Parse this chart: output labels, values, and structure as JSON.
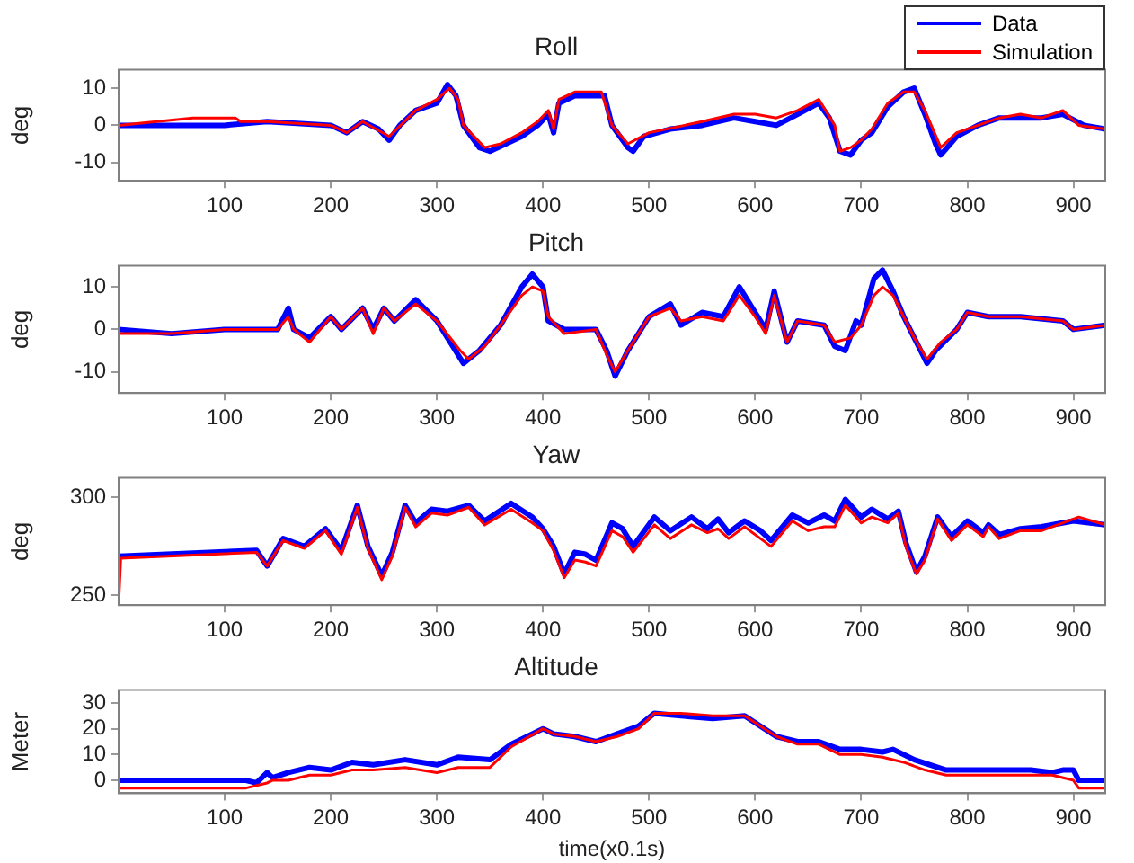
{
  "chart_data": [
    {
      "type": "line",
      "title": "Roll",
      "ylabel": "deg",
      "xlim": [
        0,
        930
      ],
      "xticks": [
        100,
        200,
        300,
        400,
        500,
        600,
        700,
        800,
        900
      ],
      "ylim": [
        -15,
        15
      ],
      "yticks": [
        -10,
        0,
        10
      ],
      "legend": "top right",
      "marker": "none",
      "line_style": "solid",
      "series": [
        {
          "name": "Data",
          "color": "#0000ff",
          "x": [
            0,
            100,
            140,
            200,
            215,
            230,
            245,
            255,
            265,
            280,
            300,
            310,
            318,
            325,
            340,
            350,
            365,
            380,
            395,
            405,
            410,
            415,
            430,
            450,
            458,
            465,
            480,
            485,
            495,
            520,
            550,
            580,
            600,
            620,
            640,
            660,
            670,
            680,
            690,
            700,
            710,
            725,
            740,
            750,
            760,
            770,
            775,
            790,
            810,
            830,
            850,
            870,
            890,
            910,
            930
          ],
          "values": [
            0,
            0,
            1,
            0,
            -2,
            1,
            -1,
            -4,
            0,
            4,
            6,
            11,
            8,
            0,
            -6,
            -7,
            -5,
            -3,
            0,
            3,
            -2,
            6,
            8,
            8,
            8,
            0,
            -6,
            -7,
            -3,
            -1,
            0,
            2,
            1,
            0,
            3,
            6,
            2,
            -7,
            -8,
            -4,
            -2,
            5,
            9,
            10,
            3,
            -5,
            -8,
            -3,
            0,
            2,
            2,
            2,
            3,
            0,
            -1
          ]
        },
        {
          "name": "Simulation",
          "color": "#ff0000",
          "x": [
            0,
            70,
            110,
            115,
            140,
            200,
            215,
            230,
            255,
            280,
            300,
            312,
            320,
            325,
            345,
            360,
            380,
            395,
            405,
            410,
            415,
            430,
            455,
            465,
            480,
            500,
            550,
            580,
            600,
            620,
            640,
            660,
            675,
            680,
            690,
            700,
            710,
            725,
            740,
            750,
            760,
            775,
            790,
            810,
            830,
            850,
            870,
            890,
            905,
            930
          ],
          "values": [
            0,
            2,
            2,
            1,
            1,
            0,
            -2,
            1,
            -3,
            4,
            7,
            10,
            7,
            0,
            -6,
            -5,
            -2,
            1,
            4,
            -1,
            7,
            9,
            9,
            0,
            -5,
            -2,
            1,
            3,
            3,
            2,
            4,
            7,
            0,
            -7,
            -6,
            -4,
            -1,
            6,
            9,
            9,
            4,
            -6,
            -2,
            0,
            2,
            3,
            2,
            4,
            0,
            -1
          ]
        }
      ]
    },
    {
      "type": "line",
      "title": "Pitch",
      "ylabel": "deg",
      "xlim": [
        0,
        930
      ],
      "xticks": [
        100,
        200,
        300,
        400,
        500,
        600,
        700,
        800,
        900
      ],
      "ylim": [
        -15,
        15
      ],
      "yticks": [
        -10,
        0,
        10
      ],
      "marker": "none",
      "line_style": "solid",
      "series": [
        {
          "color": "#0000ff",
          "x": [
            0,
            50,
            100,
            150,
            160,
            165,
            180,
            200,
            210,
            230,
            240,
            250,
            260,
            280,
            300,
            320,
            325,
            340,
            360,
            380,
            390,
            400,
            405,
            420,
            450,
            460,
            468,
            480,
            500,
            520,
            530,
            550,
            570,
            585,
            600,
            610,
            618,
            630,
            640,
            665,
            675,
            685,
            695,
            700,
            712,
            720,
            730,
            740,
            750,
            762,
            770,
            790,
            800,
            820,
            850,
            890,
            900,
            930
          ],
          "values": [
            0,
            -1,
            0,
            0,
            5,
            0,
            -2,
            3,
            0,
            5,
            0,
            5,
            2,
            7,
            2,
            -6,
            -8,
            -5,
            1,
            10,
            13,
            10,
            2,
            0,
            0,
            -5,
            -11,
            -5,
            3,
            6,
            1,
            4,
            3,
            10,
            4,
            0,
            9,
            -3,
            2,
            1,
            -4,
            -5,
            2,
            1,
            12,
            14,
            9,
            3,
            -2,
            -8,
            -5,
            0,
            4,
            3,
            3,
            2,
            0,
            1
          ]
        },
        {
          "color": "#ff0000",
          "x": [
            0,
            50,
            100,
            150,
            160,
            165,
            180,
            200,
            210,
            230,
            240,
            250,
            260,
            280,
            300,
            322,
            330,
            345,
            360,
            380,
            390,
            400,
            405,
            420,
            450,
            460,
            468,
            480,
            500,
            520,
            530,
            550,
            570,
            585,
            600,
            610,
            618,
            630,
            640,
            665,
            675,
            690,
            700,
            712,
            720,
            730,
            740,
            750,
            762,
            775,
            790,
            800,
            820,
            850,
            890,
            900,
            930
          ],
          "values": [
            -1,
            -1,
            0,
            0,
            3,
            0,
            -3,
            3,
            0,
            5,
            -1,
            5,
            2,
            6,
            2,
            -5,
            -7,
            -4,
            1,
            8,
            10,
            9,
            3,
            -1,
            0,
            -6,
            -10,
            -5,
            3,
            5,
            2,
            3,
            2,
            8,
            3,
            -1,
            8,
            -3,
            2,
            1,
            -3,
            -2,
            1,
            8,
            10,
            8,
            3,
            -2,
            -7,
            -3,
            0,
            4,
            3,
            3,
            2,
            0,
            1
          ]
        }
      ]
    },
    {
      "type": "line",
      "title": "Yaw",
      "ylabel": "deg",
      "xlim": [
        0,
        930
      ],
      "xticks": [
        100,
        200,
        300,
        400,
        500,
        600,
        700,
        800,
        900
      ],
      "ylim": [
        245,
        310
      ],
      "yticks": [
        250,
        300
      ],
      "marker": "none",
      "line_style": "solid",
      "series": [
        {
          "color": "#0000ff",
          "x": [
            0,
            130,
            140,
            155,
            175,
            195,
            210,
            225,
            235,
            248,
            258,
            270,
            280,
            295,
            310,
            330,
            345,
            370,
            390,
            400,
            410,
            420,
            430,
            440,
            450,
            465,
            475,
            485,
            505,
            520,
            540,
            555,
            565,
            575,
            590,
            605,
            615,
            635,
            650,
            665,
            675,
            685,
            700,
            710,
            725,
            735,
            742,
            752,
            760,
            772,
            785,
            800,
            815,
            820,
            830,
            850,
            870,
            900,
            930
          ],
          "values": [
            270,
            273,
            265,
            279,
            275,
            284,
            273,
            296,
            275,
            260,
            272,
            296,
            287,
            294,
            293,
            296,
            288,
            297,
            290,
            284,
            275,
            261,
            272,
            271,
            268,
            287,
            284,
            275,
            290,
            283,
            290,
            284,
            289,
            282,
            288,
            283,
            278,
            291,
            287,
            291,
            288,
            299,
            290,
            294,
            289,
            293,
            277,
            262,
            270,
            290,
            280,
            288,
            282,
            286,
            281,
            284,
            285,
            288,
            286
          ]
        },
        {
          "color": "#ff0000",
          "x": [
            0,
            2,
            130,
            140,
            155,
            175,
            195,
            210,
            225,
            235,
            248,
            258,
            270,
            280,
            295,
            310,
            330,
            345,
            370,
            390,
            400,
            410,
            420,
            430,
            440,
            450,
            465,
            475,
            485,
            505,
            520,
            540,
            555,
            565,
            575,
            590,
            605,
            615,
            635,
            650,
            665,
            675,
            685,
            700,
            710,
            725,
            735,
            742,
            752,
            760,
            772,
            785,
            800,
            815,
            820,
            830,
            850,
            870,
            900,
            905,
            930
          ],
          "values": [
            245,
            269,
            272,
            265,
            278,
            274,
            283,
            271,
            295,
            274,
            258,
            270,
            295,
            285,
            292,
            291,
            295,
            286,
            294,
            287,
            283,
            273,
            259,
            268,
            267,
            265,
            283,
            280,
            272,
            286,
            279,
            286,
            282,
            284,
            279,
            285,
            279,
            275,
            288,
            283,
            285,
            285,
            296,
            287,
            290,
            287,
            292,
            275,
            261,
            268,
            289,
            278,
            286,
            280,
            285,
            279,
            283,
            283,
            289,
            290,
            286
          ]
        }
      ]
    },
    {
      "type": "line",
      "title": "Altitude",
      "xlabel": "time(x0.1s)",
      "ylabel": "Meter",
      "xlim": [
        0,
        930
      ],
      "xticks": [
        100,
        200,
        300,
        400,
        500,
        600,
        700,
        800,
        900
      ],
      "ylim": [
        -5,
        35
      ],
      "yticks": [
        0,
        10,
        20,
        30
      ],
      "marker": "none",
      "line_style": "solid",
      "series": [
        {
          "color": "#0000ff",
          "x": [
            0,
            120,
            130,
            140,
            145,
            160,
            180,
            200,
            220,
            240,
            270,
            300,
            320,
            350,
            370,
            400,
            410,
            430,
            450,
            470,
            490,
            505,
            530,
            560,
            590,
            620,
            640,
            660,
            680,
            700,
            720,
            730,
            750,
            780,
            800,
            830,
            860,
            880,
            890,
            900,
            905,
            930
          ],
          "values": [
            0,
            0,
            -1,
            3,
            1,
            3,
            5,
            4,
            7,
            6,
            8,
            6,
            9,
            8,
            14,
            20,
            18,
            17,
            15,
            18,
            21,
            26,
            25,
            24,
            25,
            17,
            15,
            15,
            12,
            12,
            11,
            12,
            8,
            4,
            4,
            4,
            4,
            3,
            4,
            4,
            0,
            0
          ]
        },
        {
          "color": "#ff0000",
          "x": [
            0,
            120,
            140,
            145,
            160,
            180,
            200,
            220,
            240,
            270,
            300,
            320,
            350,
            370,
            400,
            410,
            430,
            450,
            470,
            490,
            505,
            530,
            560,
            590,
            620,
            640,
            660,
            680,
            700,
            720,
            740,
            760,
            780,
            800,
            830,
            860,
            880,
            900,
            905,
            930
          ],
          "values": [
            -3,
            -3,
            -1,
            0,
            0,
            2,
            2,
            4,
            4,
            5,
            3,
            5,
            5,
            13,
            20,
            18,
            17,
            15,
            17,
            20,
            26,
            26,
            25,
            25,
            17,
            14,
            14,
            10,
            10,
            9,
            7,
            4,
            2,
            2,
            2,
            2,
            2,
            0,
            -3,
            -3
          ]
        }
      ]
    }
  ]
}
